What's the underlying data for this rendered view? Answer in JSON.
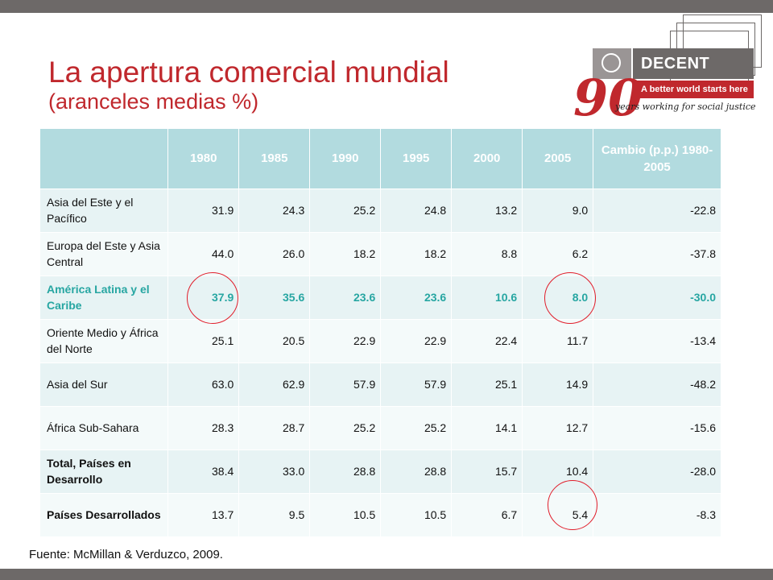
{
  "title": {
    "main": "La apertura comercial mundial",
    "sub": "(aranceles medias %)"
  },
  "logo": {
    "brand": "DECENT WORK",
    "tagline": "A better world starts here",
    "number": "90",
    "script": "years working for social justice",
    "icon": "ilo-emblem-icon"
  },
  "table": {
    "headers": [
      "",
      "1980",
      "1985",
      "1990",
      "1995",
      "2000",
      "2005",
      "Cambio (p.p.) 1980-2005"
    ],
    "rows": [
      {
        "region": "Asia del Este y el Pacífico",
        "values": [
          "31.9",
          "24.3",
          "25.2",
          "24.8",
          "13.2",
          "9.0",
          "-22.8"
        ]
      },
      {
        "region": "Europa del Este y Asia Central",
        "values": [
          "44.0",
          "26.0",
          "18.2",
          "18.2",
          "8.8",
          "6.2",
          "-37.8"
        ]
      },
      {
        "region": "América Latina y el Caribe",
        "values": [
          "37.9",
          "35.6",
          "23.6",
          "23.6",
          "10.6",
          "8.0",
          "-30.0"
        ]
      },
      {
        "region": "Oriente Medio y África del Norte",
        "values": [
          "25.1",
          "20.5",
          "22.9",
          "22.9",
          "22.4",
          "11.7",
          "-13.4"
        ]
      },
      {
        "region": "Asia del Sur",
        "values": [
          "63.0",
          "62.9",
          "57.9",
          "57.9",
          "25.1",
          "14.9",
          "-48.2"
        ]
      },
      {
        "region": "África Sub-Sahara",
        "values": [
          "28.3",
          "28.7",
          "25.2",
          "25.2",
          "14.1",
          "12.7",
          "-15.6"
        ]
      },
      {
        "region": "Total, Países en Desarrollo",
        "values": [
          "38.4",
          "33.0",
          "28.8",
          "28.8",
          "15.7",
          "10.4",
          "-28.0"
        ]
      },
      {
        "region": "Países Desarrollados",
        "values": [
          "13.7",
          "9.5",
          "10.5",
          "10.5",
          "6.7",
          "5.4",
          "-8.3"
        ]
      }
    ]
  },
  "colors": {
    "title": "#c0282d",
    "header_bg": "#b2dbdf",
    "highlight_row": "#27a6a2",
    "circle": "#e11d2a",
    "bars": "#6d6968"
  },
  "source": "Fuente: McMillan & Verduzco, 2009."
}
